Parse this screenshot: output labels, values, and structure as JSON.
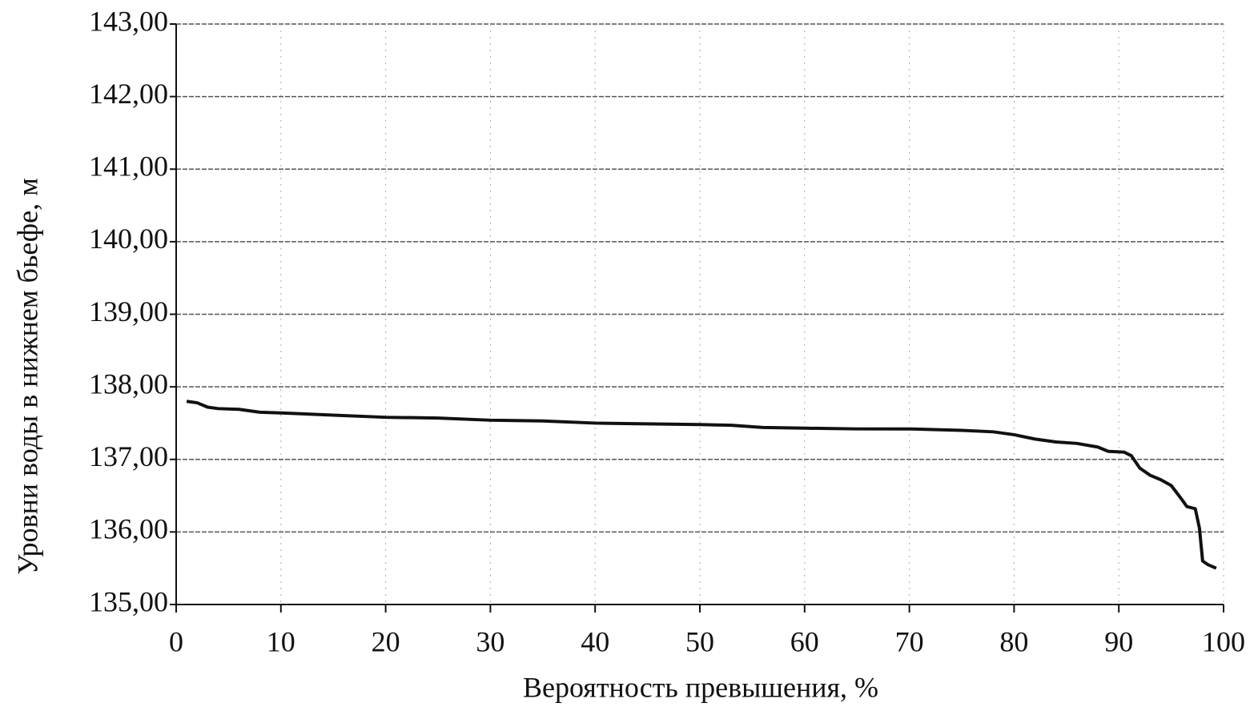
{
  "chart_data": {
    "type": "line",
    "xlabel": "Вероятность превышения, %",
    "ylabel": "Уровни воды в нижнем бьефе, м",
    "xlim": [
      0,
      100
    ],
    "xticks": [
      0,
      10,
      20,
      30,
      40,
      50,
      60,
      70,
      80,
      90,
      100
    ],
    "ylim": [
      135,
      143
    ],
    "yticks": [
      {
        "value": 135,
        "label": "135,00"
      },
      {
        "value": 136,
        "label": "136,00"
      },
      {
        "value": 137,
        "label": "137,00"
      },
      {
        "value": 138,
        "label": "138,00"
      },
      {
        "value": 139,
        "label": "139,00"
      },
      {
        "value": 140,
        "label": "140,00"
      },
      {
        "value": 141,
        "label": "141,00"
      },
      {
        "value": 142,
        "label": "142,00"
      },
      {
        "value": 143,
        "label": "143,00"
      }
    ],
    "grid": true,
    "series": [
      {
        "color": "#111111",
        "x": [
          1,
          2,
          3,
          4,
          6,
          8,
          10,
          15,
          20,
          25,
          30,
          35,
          40,
          45,
          50,
          53,
          56,
          60,
          65,
          70,
          75,
          78,
          80,
          82,
          84,
          86,
          88,
          89,
          90.5,
          91.2,
          92,
          93,
          94,
          95,
          96,
          96.5,
          97.3,
          97.7,
          98,
          98.5,
          99.3
        ],
        "values": [
          137.8,
          137.78,
          137.72,
          137.7,
          137.69,
          137.65,
          137.64,
          137.61,
          137.58,
          137.57,
          137.54,
          137.53,
          137.5,
          137.49,
          137.48,
          137.47,
          137.44,
          137.43,
          137.42,
          137.42,
          137.4,
          137.38,
          137.34,
          137.28,
          137.24,
          137.22,
          137.17,
          137.11,
          137.1,
          137.05,
          136.88,
          136.78,
          136.72,
          136.64,
          136.45,
          136.35,
          136.32,
          136.05,
          135.6,
          135.55,
          135.5
        ]
      }
    ]
  }
}
